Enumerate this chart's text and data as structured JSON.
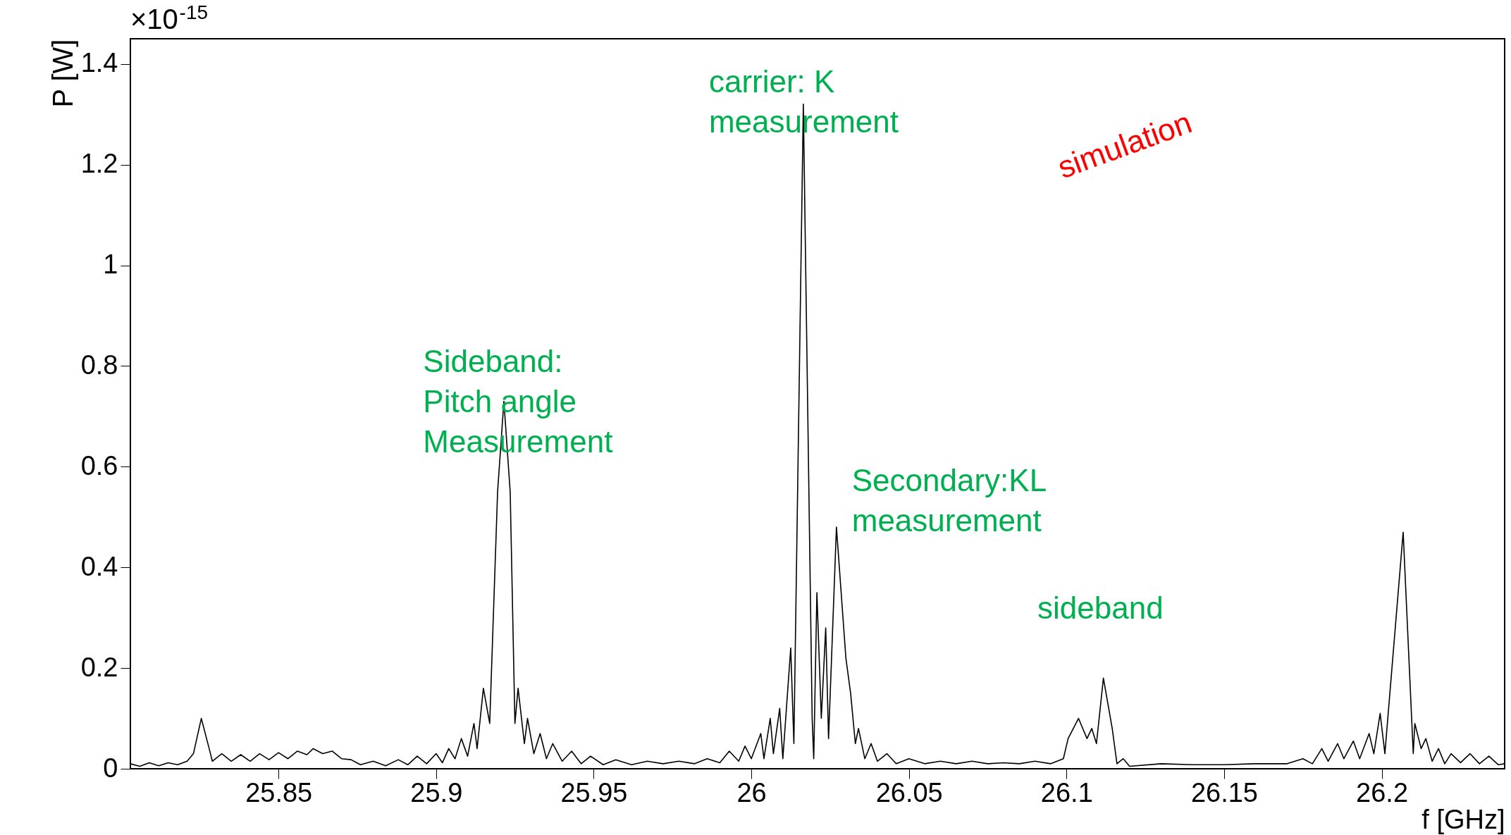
{
  "chart_data": {
    "type": "line",
    "xlabel": "f [GHz]",
    "ylabel": "P [W]",
    "x": [
      25.803,
      25.806,
      25.809,
      25.812,
      25.815,
      25.818,
      25.821,
      25.823,
      25.8255,
      25.828,
      25.829,
      25.832,
      25.835,
      25.838,
      25.841,
      25.844,
      25.847,
      25.85,
      25.853,
      25.856,
      25.859,
      25.861,
      25.864,
      25.867,
      25.87,
      25.873,
      25.876,
      25.88,
      25.884,
      25.888,
      25.891,
      25.894,
      25.897,
      25.9,
      25.902,
      25.904,
      25.906,
      25.908,
      25.91,
      25.912,
      25.913,
      25.915,
      25.917,
      25.9195,
      25.9215,
      25.9235,
      25.925,
      25.926,
      25.928,
      25.929,
      25.931,
      25.933,
      25.935,
      25.937,
      25.94,
      25.943,
      25.946,
      25.949,
      25.953,
      25.957,
      25.962,
      25.967,
      25.972,
      25.977,
      25.982,
      25.986,
      25.99,
      25.993,
      25.996,
      25.998,
      26.0,
      26.003,
      26.004,
      26.006,
      26.007,
      26.009,
      26.01,
      26.0125,
      26.0135,
      26.0165,
      26.0193,
      26.0198,
      26.0208,
      26.0222,
      26.0236,
      26.0245,
      26.027,
      26.03,
      26.0315,
      26.033,
      26.034,
      26.036,
      26.038,
      26.04,
      26.043,
      26.046,
      26.05,
      26.055,
      26.06,
      26.065,
      26.07,
      26.075,
      26.08,
      26.085,
      26.09,
      26.095,
      26.099,
      26.1005,
      26.1038,
      26.1065,
      26.108,
      26.1095,
      26.1117,
      26.1145,
      26.116,
      26.118,
      26.12,
      26.13,
      26.14,
      26.15,
      26.16,
      26.17,
      26.175,
      26.178,
      26.181,
      26.183,
      26.186,
      26.188,
      26.191,
      26.193,
      26.196,
      26.1975,
      26.1995,
      26.201,
      26.2068,
      26.21,
      26.2105,
      26.2125,
      26.214,
      26.216,
      26.218,
      26.22,
      26.222,
      26.225,
      26.228,
      26.231,
      26.234,
      26.237,
      26.239
    ],
    "series": [
      {
        "color": "#000000",
        "values": [
          0.01,
          0.005,
          0.012,
          0.006,
          0.012,
          0.008,
          0.015,
          0.03,
          0.1,
          0.04,
          0.015,
          0.03,
          0.015,
          0.028,
          0.015,
          0.03,
          0.018,
          0.032,
          0.02,
          0.035,
          0.028,
          0.04,
          0.03,
          0.035,
          0.02,
          0.018,
          0.008,
          0.015,
          0.006,
          0.018,
          0.008,
          0.025,
          0.01,
          0.03,
          0.012,
          0.04,
          0.02,
          0.06,
          0.025,
          0.09,
          0.04,
          0.16,
          0.09,
          0.55,
          0.73,
          0.55,
          0.09,
          0.16,
          0.05,
          0.1,
          0.03,
          0.07,
          0.02,
          0.05,
          0.015,
          0.035,
          0.01,
          0.025,
          0.008,
          0.018,
          0.008,
          0.015,
          0.01,
          0.015,
          0.01,
          0.02,
          0.012,
          0.035,
          0.015,
          0.045,
          0.02,
          0.07,
          0.02,
          0.1,
          0.03,
          0.12,
          0.02,
          0.24,
          0.05,
          1.32,
          0.1,
          0.02,
          0.35,
          0.1,
          0.28,
          0.06,
          0.48,
          0.22,
          0.15,
          0.05,
          0.08,
          0.02,
          0.05,
          0.015,
          0.03,
          0.01,
          0.02,
          0.01,
          0.015,
          0.01,
          0.015,
          0.01,
          0.012,
          0.01,
          0.015,
          0.01,
          0.02,
          0.06,
          0.1,
          0.06,
          0.08,
          0.05,
          0.18,
          0.08,
          0.01,
          0.02,
          0.005,
          0.01,
          0.008,
          0.008,
          0.01,
          0.01,
          0.02,
          0.01,
          0.04,
          0.015,
          0.05,
          0.02,
          0.055,
          0.02,
          0.07,
          0.03,
          0.11,
          0.03,
          0.47,
          0.03,
          0.09,
          0.04,
          0.06,
          0.015,
          0.04,
          0.01,
          0.03,
          0.012,
          0.03,
          0.01,
          0.025,
          0.008,
          0.01
        ]
      }
    ],
    "xlim": [
      25.803,
      26.239
    ],
    "xticks": [
      25.85,
      25.9,
      25.95,
      26,
      26.05,
      26.1,
      26.15,
      26.2
    ],
    "ylim": [
      0,
      1.45
    ],
    "yticks": [
      0,
      0.2,
      0.4,
      0.6,
      0.8,
      1,
      1.2,
      1.4
    ],
    "annotations": [
      "×10$^{-15}$",
      "Sideband:\nPitch angle\nMeasurement",
      "carrier: K\nmeasurement",
      "Secondary:KL\nmeasurement",
      "sideband",
      "simulation"
    ]
  }
}
